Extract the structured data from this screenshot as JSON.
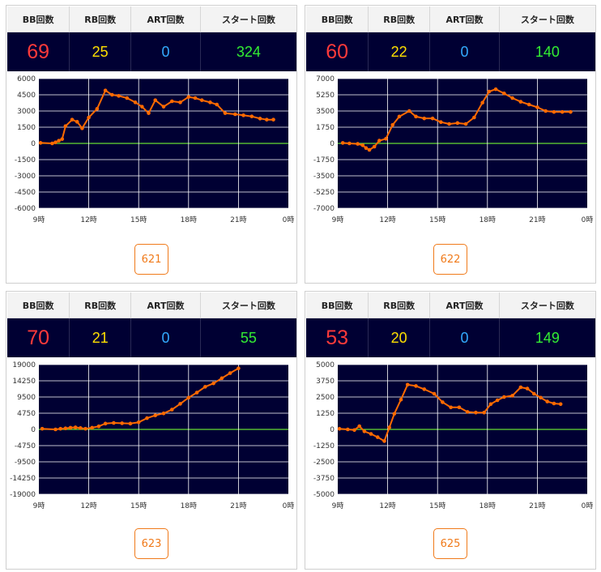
{
  "headers": {
    "bb": "BB回数",
    "rb": "RB回数",
    "art": "ART回数",
    "start": "スタート回数"
  },
  "colors": {
    "header_bg": "#f3f3f3",
    "value_bg": "#000033",
    "plot_bg": "#000033",
    "grid": "#ffffff",
    "zero_line": "#66dd33",
    "series": "#ff6a00",
    "bb": "#ff3a3a",
    "rb": "#ffe000",
    "art": "#33aaff",
    "start": "#33ee33",
    "button": "#f07a1a"
  },
  "x_ticks": [
    "9時",
    "12時",
    "15時",
    "18時",
    "21時",
    "0時"
  ],
  "panels": [
    {
      "stats": {
        "bb": "69",
        "rb": "25",
        "art": "0",
        "start": "324"
      },
      "button_label": "621"
    },
    {
      "stats": {
        "bb": "60",
        "rb": "22",
        "art": "0",
        "start": "140"
      },
      "button_label": "622"
    },
    {
      "stats": {
        "bb": "70",
        "rb": "21",
        "art": "0",
        "start": "55"
      },
      "button_label": "623"
    },
    {
      "stats": {
        "bb": "53",
        "rb": "20",
        "art": "0",
        "start": "149"
      },
      "button_label": "625"
    }
  ],
  "chart_data": [
    {
      "type": "line",
      "x_unit": "hour",
      "xlim": [
        9,
        24
      ],
      "ylim": [
        -6000,
        6000
      ],
      "y_ticks": [
        "6000",
        "4500",
        "3000",
        "1500",
        "0",
        "-1500",
        "-3000",
        "-4500",
        "-6000"
      ],
      "x": [
        9.1,
        9.8,
        10.0,
        10.2,
        10.4,
        10.6,
        11.0,
        11.3,
        11.6,
        12.0,
        12.5,
        13.0,
        13.4,
        13.8,
        14.3,
        14.8,
        15.2,
        15.6,
        16.0,
        16.5,
        17.0,
        17.5,
        18.0,
        18.4,
        18.8,
        19.3,
        19.7,
        20.2,
        20.8,
        21.3,
        21.8,
        22.3,
        22.7,
        23.1
      ],
      "y": [
        50,
        0,
        100,
        250,
        400,
        1600,
        2200,
        2000,
        1400,
        2400,
        3200,
        4900,
        4500,
        4400,
        4200,
        3800,
        3400,
        2800,
        4000,
        3400,
        3900,
        3800,
        4300,
        4200,
        4000,
        3800,
        3600,
        2800,
        2700,
        2600,
        2500,
        2300,
        2200,
        2200
      ]
    },
    {
      "type": "line",
      "x_unit": "hour",
      "xlim": [
        9,
        24
      ],
      "ylim": [
        -7000,
        7000
      ],
      "y_ticks": [
        "7000",
        "5250",
        "3500",
        "1750",
        "0",
        "-1750",
        "-3500",
        "-5250",
        "-7000"
      ],
      "x": [
        9.3,
        9.7,
        10.2,
        10.5,
        10.7,
        10.9,
        11.2,
        11.5,
        11.9,
        12.3,
        12.7,
        13.3,
        13.7,
        14.2,
        14.7,
        15.2,
        15.7,
        16.2,
        16.7,
        17.2,
        17.7,
        18.1,
        18.5,
        19.0,
        19.5,
        20.0,
        20.5,
        21.0,
        21.5,
        22.0,
        22.5,
        23.0
      ],
      "y": [
        50,
        0,
        -50,
        -200,
        -500,
        -700,
        -350,
        300,
        500,
        2000,
        2900,
        3500,
        2900,
        2700,
        2700,
        2300,
        2100,
        2200,
        2100,
        2800,
        4400,
        5600,
        5850,
        5400,
        4900,
        4500,
        4200,
        3900,
        3500,
        3400,
        3400,
        3400
      ]
    },
    {
      "type": "line",
      "x_unit": "hour",
      "xlim": [
        9,
        24
      ],
      "ylim": [
        -19000,
        19000
      ],
      "y_ticks": [
        "19000",
        "14250",
        "9500",
        "4750",
        "0",
        "-4750",
        "-9500",
        "-14250",
        "-19000"
      ],
      "x": [
        9.2,
        10.0,
        10.3,
        10.6,
        10.9,
        11.2,
        11.5,
        11.8,
        12.2,
        12.6,
        13.0,
        13.5,
        14.0,
        14.5,
        15.0,
        15.5,
        16.0,
        16.5,
        17.0,
        17.5,
        18.0,
        18.5,
        19.0,
        19.5,
        20.0,
        20.5,
        21.0
      ],
      "y": [
        200,
        0,
        200,
        300,
        500,
        600,
        400,
        200,
        500,
        900,
        1700,
        1900,
        1800,
        1700,
        2100,
        3300,
        4100,
        4700,
        5800,
        7500,
        9300,
        10800,
        12500,
        13500,
        15000,
        16500,
        17900
      ]
    },
    {
      "type": "line",
      "x_unit": "hour",
      "xlim": [
        9,
        24
      ],
      "ylim": [
        -5000,
        5000
      ],
      "y_ticks": [
        "5000",
        "3750",
        "2500",
        "1250",
        "0",
        "-1250",
        "-2500",
        "-3750",
        "-5000"
      ],
      "x": [
        9.1,
        9.6,
        10.0,
        10.3,
        10.6,
        11.0,
        11.4,
        11.8,
        12.1,
        12.4,
        12.8,
        13.2,
        13.7,
        14.2,
        14.8,
        15.3,
        15.8,
        16.3,
        16.8,
        17.3,
        17.8,
        18.2,
        18.6,
        19.0,
        19.5,
        20.0,
        20.4,
        20.8,
        21.2,
        21.6,
        22.0,
        22.4
      ],
      "y": [
        50,
        0,
        -50,
        250,
        -150,
        -350,
        -600,
        -900,
        150,
        1200,
        2300,
        3450,
        3350,
        3100,
        2750,
        2100,
        1700,
        1700,
        1350,
        1300,
        1300,
        1950,
        2250,
        2500,
        2600,
        3250,
        3150,
        2750,
        2450,
        2150,
        2000,
        1950
      ]
    }
  ]
}
